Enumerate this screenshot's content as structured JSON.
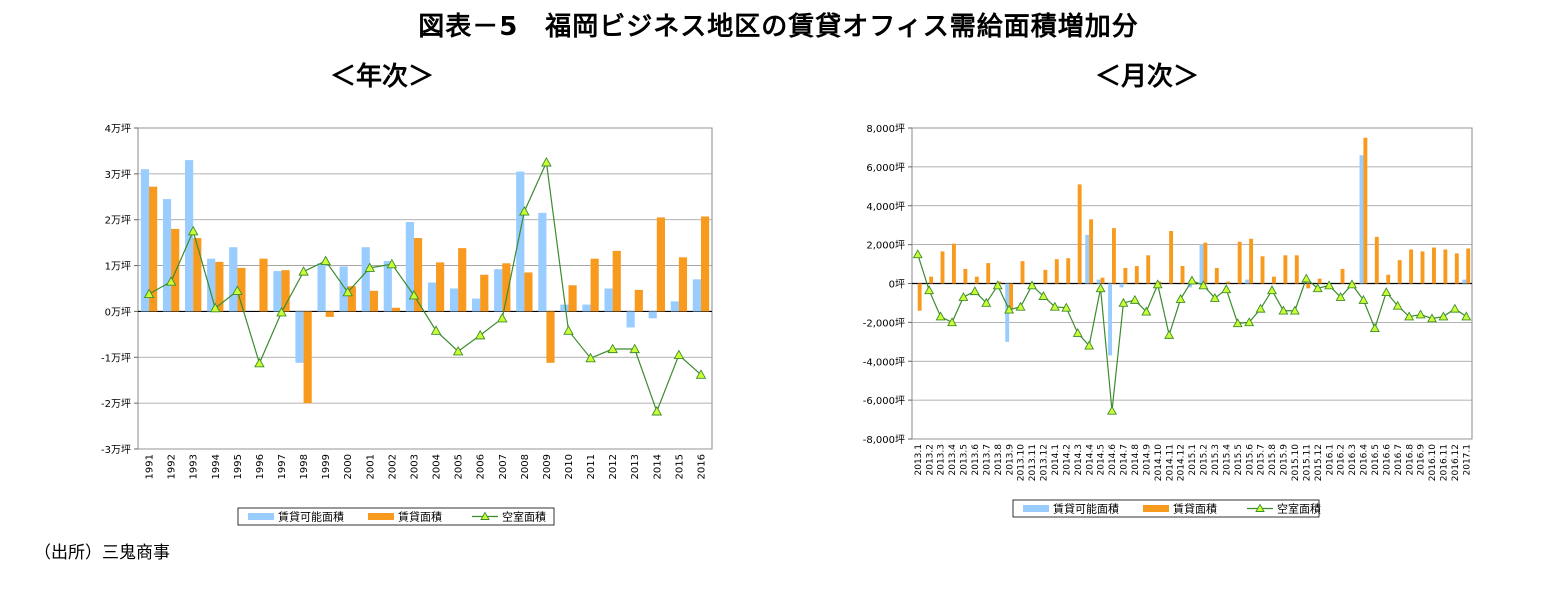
{
  "title": "図表－5　福岡ビジネス地区の賃貸オフィス需給面積増加分",
  "source": "（出所）三鬼商事",
  "legend_labels": [
    "賃貸可能面積",
    "賃貸面積",
    "空室面積"
  ],
  "colors": {
    "available": "#99CCFF",
    "leased": "#F79A1E",
    "vacant_line": "#3C8C2E",
    "vacant_marker": "#CCFF33"
  },
  "chart_data": [
    {
      "type": "bar",
      "subtitle": "＜年次＞",
      "categories": [
        "1991",
        "1992",
        "1993",
        "1994",
        "1995",
        "1996",
        "1997",
        "1998",
        "1999",
        "2000",
        "2001",
        "2002",
        "2003",
        "2004",
        "2005",
        "2006",
        "2007",
        "2008",
        "2009",
        "2010",
        "2011",
        "2012",
        "2013",
        "2014",
        "2015",
        "2016"
      ],
      "ylim": [
        -3,
        4
      ],
      "yticks": [
        4,
        3,
        2,
        1,
        0,
        -1,
        -2,
        -3
      ],
      "ytick_labels": [
        "4万坪",
        "3万坪",
        "2万坪",
        "1万坪",
        "0万坪",
        "-1万坪",
        "-2万坪",
        "-3万坪"
      ],
      "grid": true,
      "legend_position": "bottom",
      "series": [
        {
          "name": "賃貸可能面積",
          "kind": "bar",
          "values": [
            3.1,
            2.45,
            3.3,
            1.15,
            1.4,
            0,
            0.88,
            -1.12,
            1.05,
            0.98,
            1.4,
            1.1,
            1.95,
            0.63,
            0.5,
            0.28,
            0.92,
            3.05,
            2.15,
            0.15,
            0.15,
            0.5,
            -0.35,
            -0.15,
            0.22,
            0.7
          ]
        },
        {
          "name": "賃貸面積",
          "kind": "bar",
          "values": [
            2.72,
            1.8,
            1.6,
            1.08,
            0.95,
            1.15,
            0.9,
            -2.0,
            -0.12,
            0.55,
            0.45,
            0.08,
            1.6,
            1.07,
            1.38,
            0.8,
            1.05,
            0.85,
            -1.12,
            0.57,
            1.15,
            1.32,
            0.47,
            2.05,
            1.18,
            2.07
          ]
        },
        {
          "name": "空室面積",
          "kind": "line",
          "values": [
            0.38,
            0.65,
            1.75,
            0.07,
            0.45,
            -1.13,
            -0.02,
            0.87,
            1.1,
            0.42,
            0.95,
            1.03,
            0.35,
            -0.42,
            -0.87,
            -0.52,
            -0.15,
            2.18,
            3.25,
            -0.42,
            -1.02,
            -0.82,
            -0.82,
            -2.18,
            -0.95,
            -1.38
          ]
        }
      ]
    },
    {
      "type": "bar",
      "subtitle": "＜月次＞",
      "categories": [
        "2013.1",
        "2013.2",
        "2013.3",
        "2013.4",
        "2013.5",
        "2013.6",
        "2013.7",
        "2013.8",
        "2013.9",
        "2013.10",
        "2013.11",
        "2013.12",
        "2014.1",
        "2014.2",
        "2014.3",
        "2014.4",
        "2014.5",
        "2014.6",
        "2014.7",
        "2014.8",
        "2014.9",
        "2014.10",
        "2014.11",
        "2014.12",
        "2015.1",
        "2015.2",
        "2015.3",
        "2015.4",
        "2015.5",
        "2015.6",
        "2015.7",
        "2015.8",
        "2015.9",
        "2015.10",
        "2015.11",
        "2015.12",
        "2016.1",
        "2016.2",
        "2016.3",
        "2016.4",
        "2016.5",
        "2016.6",
        "2016.7",
        "2016.8",
        "2016.9",
        "2016.10",
        "2016.11",
        "2016.12",
        "2017.1"
      ],
      "ylim": [
        -8000,
        8000
      ],
      "yticks": [
        8000,
        6000,
        4000,
        2000,
        0,
        -2000,
        -4000,
        -6000,
        -8000
      ],
      "ytick_labels": [
        "8,000坪",
        "6,000坪",
        "4,000坪",
        "2,000坪",
        "0坪",
        "-2,000坪",
        "-4,000坪",
        "-6,000坪",
        "-8,000坪"
      ],
      "grid": true,
      "legend_position": "bottom",
      "series": [
        {
          "name": "賃貸可能面積",
          "kind": "bar",
          "values": [
            0,
            0,
            0,
            0,
            0,
            0,
            0,
            0,
            -3000,
            0,
            0,
            0,
            0,
            0,
            0,
            2500,
            200,
            -3700,
            -200,
            0,
            0,
            0,
            0,
            0,
            -200,
            2000,
            0,
            0,
            0,
            200,
            0,
            0,
            0,
            0,
            0,
            0,
            0,
            0,
            0,
            6600,
            0,
            0,
            0,
            0,
            0,
            0,
            0,
            0,
            200
          ]
        },
        {
          "name": "賃貸面積",
          "kind": "bar",
          "values": [
            -1400,
            350,
            1650,
            2050,
            750,
            350,
            1050,
            100,
            -1300,
            1150,
            0,
            700,
            1250,
            1300,
            5100,
            3300,
            300,
            2850,
            800,
            900,
            1450,
            100,
            2700,
            900,
            0,
            2100,
            800,
            100,
            2150,
            2300,
            1400,
            350,
            1450,
            1450,
            -250,
            250,
            0,
            750,
            50,
            7500,
            2400,
            450,
            1200,
            1750,
            1650,
            1850,
            1750,
            1550,
            1800
          ]
        },
        {
          "name": "空室面積",
          "kind": "line",
          "values": [
            1500,
            -350,
            -1700,
            -2000,
            -700,
            -400,
            -1000,
            -100,
            -1350,
            -1200,
            -100,
            -650,
            -1200,
            -1250,
            -2550,
            -3200,
            -250,
            -6550,
            -1000,
            -850,
            -1450,
            -50,
            -2650,
            -800,
            150,
            -100,
            -750,
            -300,
            -2050,
            -2000,
            -1300,
            -350,
            -1400,
            -1400,
            250,
            -250,
            -100,
            -700,
            -50,
            -850,
            -2300,
            -450,
            -1150,
            -1700,
            -1600,
            -1800,
            -1700,
            -1300,
            -1700
          ]
        }
      ]
    }
  ]
}
